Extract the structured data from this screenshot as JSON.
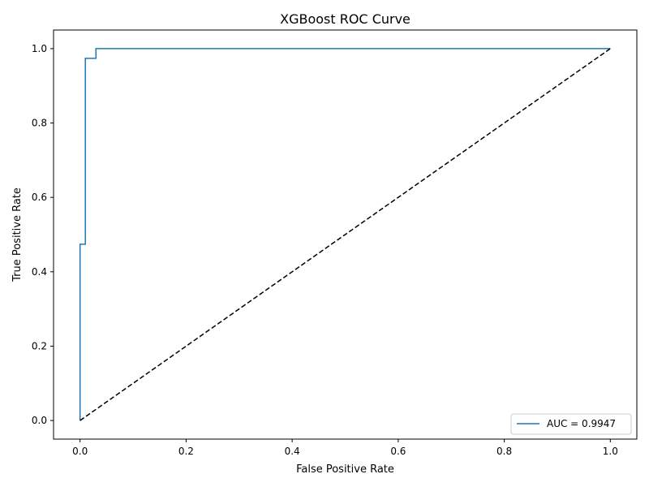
{
  "chart_data": {
    "type": "line",
    "title": "XGBoost ROC Curve",
    "xlabel": "False Positive Rate",
    "ylabel": "True Positive Rate",
    "xlim": [
      -0.05,
      1.05
    ],
    "ylim": [
      -0.05,
      1.05
    ],
    "xticks": [
      0.0,
      0.2,
      0.4,
      0.6,
      0.8,
      1.0
    ],
    "yticks": [
      0.0,
      0.2,
      0.4,
      0.6,
      0.8,
      1.0
    ],
    "xtick_labels": [
      "0.0",
      "0.2",
      "0.4",
      "0.6",
      "0.8",
      "1.0"
    ],
    "ytick_labels": [
      "0.0",
      "0.2",
      "0.4",
      "0.6",
      "0.8",
      "1.0"
    ],
    "grid": false,
    "legend_position": "lower-right",
    "series": [
      {
        "name": "AUC = 0.9947",
        "color": "#1f77b4",
        "style": "solid",
        "x": [
          0.0,
          0.0,
          0.0,
          0.01,
          0.01,
          0.03,
          0.03,
          1.0
        ],
        "y": [
          0.0,
          0.0,
          0.474,
          0.474,
          0.974,
          0.974,
          1.0,
          1.0
        ]
      },
      {
        "color": "#000000",
        "style": "dashed",
        "x": [
          0.0,
          1.0
        ],
        "y": [
          0.0,
          1.0
        ]
      }
    ]
  }
}
